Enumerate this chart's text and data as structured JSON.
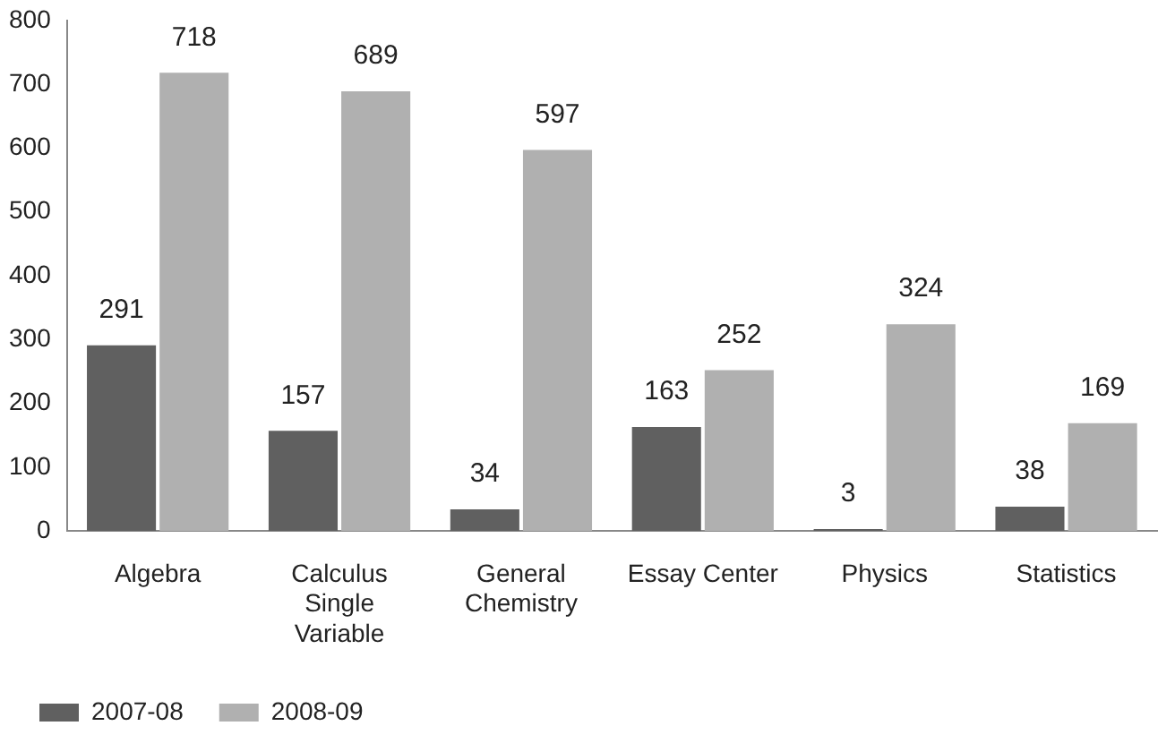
{
  "chart_data": {
    "type": "bar",
    "categories": [
      "Algebra",
      "Calculus Single Variable",
      "General Chemistry",
      "Essay Center",
      "Physics",
      "Statistics"
    ],
    "series": [
      {
        "name": "2007-08",
        "color": "#606060",
        "values": [
          291,
          157,
          34,
          163,
          3,
          38
        ]
      },
      {
        "name": "2008-09",
        "color": "#b0b0b0",
        "values": [
          718,
          689,
          597,
          252,
          324,
          169
        ]
      }
    ],
    "ylim": [
      0,
      800
    ],
    "yticks": [
      0,
      100,
      200,
      300,
      400,
      500,
      600,
      700,
      800
    ],
    "data_labels": true,
    "legend": "bottom left"
  }
}
